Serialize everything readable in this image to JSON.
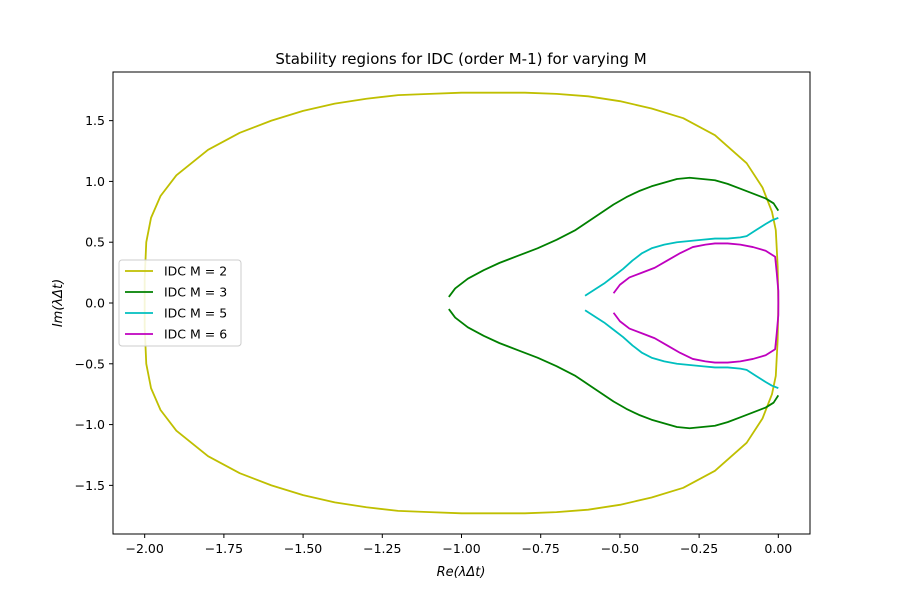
{
  "chart_data": {
    "type": "line",
    "title": "Stability regions for IDC (order M-1) for varying M",
    "xlabel": "Re(λΔt)",
    "ylabel": "Im(λΔt)",
    "xlim": [
      -2.1,
      0.1
    ],
    "ylim": [
      -1.9,
      1.9
    ],
    "xticks": [
      -2.0,
      -1.75,
      -1.5,
      -1.25,
      -1.0,
      -0.75,
      -0.5,
      -0.25,
      0.0
    ],
    "xtick_labels": [
      "−2.00",
      "−1.75",
      "−1.50",
      "−1.25",
      "−1.00",
      "−0.75",
      "−0.50",
      "−0.25",
      "0.00"
    ],
    "yticks": [
      -1.5,
      -1.0,
      -0.5,
      0.0,
      0.5,
      1.0,
      1.5
    ],
    "ytick_labels": [
      "−1.5",
      "−1.0",
      "−0.5",
      "0.0",
      "0.5",
      "1.0",
      "1.5"
    ],
    "grid": false,
    "legend_position": "center-left",
    "series": [
      {
        "name": "IDC M = 2",
        "color": "#bfbf00",
        "points": [
          [
            0.0,
            0.0
          ],
          [
            -0.002,
            0.3
          ],
          [
            -0.008,
            0.6
          ],
          [
            -0.02,
            0.75
          ],
          [
            -0.05,
            0.95
          ],
          [
            -0.1,
            1.15
          ],
          [
            -0.2,
            1.38
          ],
          [
            -0.3,
            1.52
          ],
          [
            -0.4,
            1.6
          ],
          [
            -0.5,
            1.66
          ],
          [
            -0.6,
            1.7
          ],
          [
            -0.7,
            1.72
          ],
          [
            -0.8,
            1.73
          ],
          [
            -0.9,
            1.73
          ],
          [
            -1.0,
            1.73
          ],
          [
            -1.1,
            1.72
          ],
          [
            -1.2,
            1.71
          ],
          [
            -1.3,
            1.68
          ],
          [
            -1.4,
            1.64
          ],
          [
            -1.5,
            1.58
          ],
          [
            -1.6,
            1.5
          ],
          [
            -1.7,
            1.4
          ],
          [
            -1.8,
            1.26
          ],
          [
            -1.9,
            1.05
          ],
          [
            -1.95,
            0.88
          ],
          [
            -1.98,
            0.7
          ],
          [
            -1.995,
            0.5
          ],
          [
            -2.0,
            0.2
          ],
          [
            -2.0,
            0.0
          ],
          [
            -2.0,
            -0.2
          ],
          [
            -1.995,
            -0.5
          ],
          [
            -1.98,
            -0.7
          ],
          [
            -1.95,
            -0.88
          ],
          [
            -1.9,
            -1.05
          ],
          [
            -1.8,
            -1.26
          ],
          [
            -1.7,
            -1.4
          ],
          [
            -1.6,
            -1.5
          ],
          [
            -1.5,
            -1.58
          ],
          [
            -1.4,
            -1.64
          ],
          [
            -1.3,
            -1.68
          ],
          [
            -1.2,
            -1.71
          ],
          [
            -1.1,
            -1.72
          ],
          [
            -1.0,
            -1.73
          ],
          [
            -0.9,
            -1.73
          ],
          [
            -0.8,
            -1.73
          ],
          [
            -0.7,
            -1.72
          ],
          [
            -0.6,
            -1.7
          ],
          [
            -0.5,
            -1.66
          ],
          [
            -0.4,
            -1.6
          ],
          [
            -0.3,
            -1.52
          ],
          [
            -0.2,
            -1.38
          ],
          [
            -0.1,
            -1.15
          ],
          [
            -0.05,
            -0.95
          ],
          [
            -0.02,
            -0.75
          ],
          [
            -0.008,
            -0.6
          ],
          [
            -0.002,
            -0.3
          ],
          [
            0.0,
            0.0
          ]
        ]
      },
      {
        "name": "IDC M = 3",
        "color": "#008000",
        "points": [
          [
            -1.04,
            0.05
          ],
          [
            -1.02,
            0.12
          ],
          [
            -0.98,
            0.2
          ],
          [
            -0.93,
            0.27
          ],
          [
            -0.88,
            0.33
          ],
          [
            -0.82,
            0.39
          ],
          [
            -0.76,
            0.45
          ],
          [
            -0.7,
            0.52
          ],
          [
            -0.64,
            0.6
          ],
          [
            -0.6,
            0.67
          ],
          [
            -0.56,
            0.74
          ],
          [
            -0.52,
            0.81
          ],
          [
            -0.48,
            0.87
          ],
          [
            -0.44,
            0.92
          ],
          [
            -0.4,
            0.96
          ],
          [
            -0.36,
            0.99
          ],
          [
            -0.32,
            1.02
          ],
          [
            -0.28,
            1.03
          ],
          [
            -0.24,
            1.02
          ],
          [
            -0.2,
            1.01
          ],
          [
            -0.16,
            0.98
          ],
          [
            -0.12,
            0.94
          ],
          [
            -0.08,
            0.9
          ],
          [
            -0.04,
            0.86
          ],
          [
            -0.015,
            0.82
          ],
          [
            0.0,
            0.76
          ]
        ]
      },
      {
        "name": "IDC M = 3",
        "color": "#008000",
        "points": [
          [
            -1.04,
            -0.05
          ],
          [
            -1.02,
            -0.12
          ],
          [
            -0.98,
            -0.2
          ],
          [
            -0.93,
            -0.27
          ],
          [
            -0.88,
            -0.33
          ],
          [
            -0.82,
            -0.39
          ],
          [
            -0.76,
            -0.45
          ],
          [
            -0.7,
            -0.52
          ],
          [
            -0.64,
            -0.6
          ],
          [
            -0.6,
            -0.67
          ],
          [
            -0.56,
            -0.74
          ],
          [
            -0.52,
            -0.81
          ],
          [
            -0.48,
            -0.87
          ],
          [
            -0.44,
            -0.92
          ],
          [
            -0.4,
            -0.96
          ],
          [
            -0.36,
            -0.99
          ],
          [
            -0.32,
            -1.02
          ],
          [
            -0.28,
            -1.03
          ],
          [
            -0.24,
            -1.02
          ],
          [
            -0.2,
            -1.01
          ],
          [
            -0.16,
            -0.98
          ],
          [
            -0.12,
            -0.94
          ],
          [
            -0.08,
            -0.9
          ],
          [
            -0.04,
            -0.86
          ],
          [
            -0.015,
            -0.82
          ],
          [
            0.0,
            -0.76
          ]
        ]
      },
      {
        "name": "IDC M = 5",
        "color": "#00bfbf",
        "points": [
          [
            -0.61,
            0.06
          ],
          [
            -0.58,
            0.11
          ],
          [
            -0.55,
            0.16
          ],
          [
            -0.52,
            0.22
          ],
          [
            -0.49,
            0.28
          ],
          [
            -0.46,
            0.35
          ],
          [
            -0.43,
            0.41
          ],
          [
            -0.4,
            0.45
          ],
          [
            -0.36,
            0.48
          ],
          [
            -0.32,
            0.5
          ],
          [
            -0.28,
            0.51
          ],
          [
            -0.24,
            0.52
          ],
          [
            -0.2,
            0.53
          ],
          [
            -0.16,
            0.53
          ],
          [
            -0.12,
            0.54
          ],
          [
            -0.1,
            0.55
          ],
          [
            -0.07,
            0.6
          ],
          [
            -0.04,
            0.65
          ],
          [
            -0.02,
            0.68
          ],
          [
            0.0,
            0.7
          ]
        ]
      },
      {
        "name": "IDC M = 5",
        "color": "#00bfbf",
        "points": [
          [
            -0.61,
            -0.06
          ],
          [
            -0.58,
            -0.11
          ],
          [
            -0.55,
            -0.16
          ],
          [
            -0.52,
            -0.22
          ],
          [
            -0.49,
            -0.28
          ],
          [
            -0.46,
            -0.35
          ],
          [
            -0.43,
            -0.41
          ],
          [
            -0.4,
            -0.45
          ],
          [
            -0.36,
            -0.48
          ],
          [
            -0.32,
            -0.5
          ],
          [
            -0.28,
            -0.51
          ],
          [
            -0.24,
            -0.52
          ],
          [
            -0.2,
            -0.53
          ],
          [
            -0.16,
            -0.53
          ],
          [
            -0.12,
            -0.54
          ],
          [
            -0.1,
            -0.55
          ],
          [
            -0.07,
            -0.6
          ],
          [
            -0.04,
            -0.65
          ],
          [
            -0.02,
            -0.68
          ],
          [
            0.0,
            -0.7
          ]
        ]
      },
      {
        "name": "IDC M = 6",
        "color": "#bf00bf",
        "points": [
          [
            -0.52,
            0.08
          ],
          [
            -0.5,
            0.15
          ],
          [
            -0.47,
            0.21
          ],
          [
            -0.43,
            0.25
          ],
          [
            -0.39,
            0.29
          ],
          [
            -0.35,
            0.35
          ],
          [
            -0.31,
            0.41
          ],
          [
            -0.27,
            0.46
          ],
          [
            -0.23,
            0.48
          ],
          [
            -0.2,
            0.49
          ],
          [
            -0.16,
            0.49
          ],
          [
            -0.12,
            0.48
          ],
          [
            -0.08,
            0.46
          ],
          [
            -0.04,
            0.43
          ],
          [
            -0.01,
            0.38
          ],
          [
            -0.005,
            0.25
          ],
          [
            0.0,
            0.1
          ],
          [
            0.0,
            0.0
          ],
          [
            0.0,
            -0.1
          ],
          [
            -0.005,
            -0.25
          ],
          [
            -0.01,
            -0.38
          ],
          [
            -0.04,
            -0.43
          ],
          [
            -0.08,
            -0.46
          ],
          [
            -0.12,
            -0.48
          ],
          [
            -0.16,
            -0.49
          ],
          [
            -0.2,
            -0.49
          ],
          [
            -0.23,
            -0.48
          ],
          [
            -0.27,
            -0.46
          ],
          [
            -0.31,
            -0.41
          ],
          [
            -0.35,
            -0.35
          ],
          [
            -0.39,
            -0.29
          ],
          [
            -0.43,
            -0.25
          ],
          [
            -0.47,
            -0.21
          ],
          [
            -0.5,
            -0.15
          ],
          [
            -0.52,
            -0.08
          ]
        ]
      }
    ],
    "legend": [
      {
        "label": "IDC M = 2",
        "color": "#bfbf00"
      },
      {
        "label": "IDC M = 3",
        "color": "#008000"
      },
      {
        "label": "IDC M = 5",
        "color": "#00bfbf"
      },
      {
        "label": "IDC M = 6",
        "color": "#bf00bf"
      }
    ]
  }
}
